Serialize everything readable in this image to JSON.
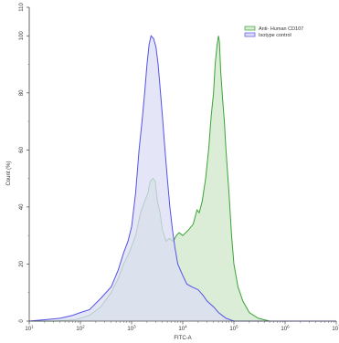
{
  "chart_data": {
    "type": "area",
    "xlabel": "FITC-A",
    "ylabel": "Count (%)",
    "x_scale": "log",
    "xlim": [
      10,
      10000000
    ],
    "ylim": [
      0,
      110
    ],
    "x_ticks": [
      {
        "value": 10,
        "base": "10",
        "exp": "1"
      },
      {
        "value": 100,
        "base": "10",
        "exp": "2"
      },
      {
        "value": 1000,
        "base": "10",
        "exp": "3"
      },
      {
        "value": 10000,
        "base": "10",
        "exp": "4"
      },
      {
        "value": 100000,
        "base": "10",
        "exp": "5"
      },
      {
        "value": 1000000,
        "base": "10",
        "exp": "6"
      },
      {
        "value": 10000000,
        "base": "10",
        "exp": "7"
      }
    ],
    "y_ticks": [
      "0",
      "20",
      "40",
      "60",
      "80",
      "100",
      "110"
    ],
    "grid": false,
    "legend_position": "top-right",
    "series": [
      {
        "name": "Anti- Human CD107",
        "color": "#3aa335",
        "fill": "#d9ecd5",
        "points": [
          [
            10,
            0
          ],
          [
            30,
            0
          ],
          [
            80,
            0.5
          ],
          [
            150,
            2
          ],
          [
            250,
            5
          ],
          [
            400,
            10
          ],
          [
            550,
            15
          ],
          [
            700,
            20
          ],
          [
            900,
            24
          ],
          [
            1200,
            30
          ],
          [
            1500,
            38
          ],
          [
            1800,
            42
          ],
          [
            2100,
            45
          ],
          [
            2300,
            49
          ],
          [
            2600,
            50
          ],
          [
            2900,
            49
          ],
          [
            3200,
            42
          ],
          [
            3600,
            38
          ],
          [
            4000,
            32
          ],
          [
            4700,
            28
          ],
          [
            5500,
            29
          ],
          [
            6500,
            28
          ],
          [
            7500,
            30
          ],
          [
            8500,
            31
          ],
          [
            10000,
            30
          ],
          [
            13000,
            32
          ],
          [
            16000,
            34
          ],
          [
            19000,
            39
          ],
          [
            21000,
            38
          ],
          [
            24000,
            42
          ],
          [
            28000,
            50
          ],
          [
            32000,
            60
          ],
          [
            36000,
            72
          ],
          [
            40000,
            80
          ],
          [
            43000,
            90
          ],
          [
            47000,
            97
          ],
          [
            50000,
            100
          ],
          [
            52000,
            98
          ],
          [
            55000,
            88
          ],
          [
            60000,
            78
          ],
          [
            65000,
            70
          ],
          [
            70000,
            60
          ],
          [
            80000,
            45
          ],
          [
            90000,
            30
          ],
          [
            100000,
            20
          ],
          [
            120000,
            12
          ],
          [
            150000,
            7
          ],
          [
            200000,
            3
          ],
          [
            300000,
            1
          ],
          [
            500000,
            0
          ],
          [
            10000000,
            0
          ]
        ]
      },
      {
        "name": "Isotype control",
        "color": "#5353e6",
        "fill": "#dcdcf5",
        "points": [
          [
            10,
            0
          ],
          [
            20,
            0.5
          ],
          [
            40,
            1
          ],
          [
            70,
            2
          ],
          [
            100,
            3
          ],
          [
            150,
            4
          ],
          [
            250,
            8
          ],
          [
            400,
            12
          ],
          [
            550,
            18
          ],
          [
            700,
            24
          ],
          [
            850,
            28
          ],
          [
            1000,
            33
          ],
          [
            1200,
            45
          ],
          [
            1400,
            60
          ],
          [
            1600,
            70
          ],
          [
            1800,
            80
          ],
          [
            2000,
            90
          ],
          [
            2200,
            97
          ],
          [
            2400,
            100
          ],
          [
            2700,
            99
          ],
          [
            3000,
            96
          ],
          [
            3300,
            90
          ],
          [
            3600,
            82
          ],
          [
            4000,
            72
          ],
          [
            4500,
            60
          ],
          [
            5000,
            50
          ],
          [
            5600,
            40
          ],
          [
            6300,
            32
          ],
          [
            7000,
            26
          ],
          [
            8000,
            20
          ],
          [
            10000,
            16
          ],
          [
            12000,
            13
          ],
          [
            15000,
            12
          ],
          [
            20000,
            11
          ],
          [
            25000,
            9
          ],
          [
            30000,
            7
          ],
          [
            40000,
            5
          ],
          [
            50000,
            3
          ],
          [
            70000,
            1
          ],
          [
            100000,
            0
          ],
          [
            10000000,
            0
          ]
        ]
      }
    ]
  }
}
